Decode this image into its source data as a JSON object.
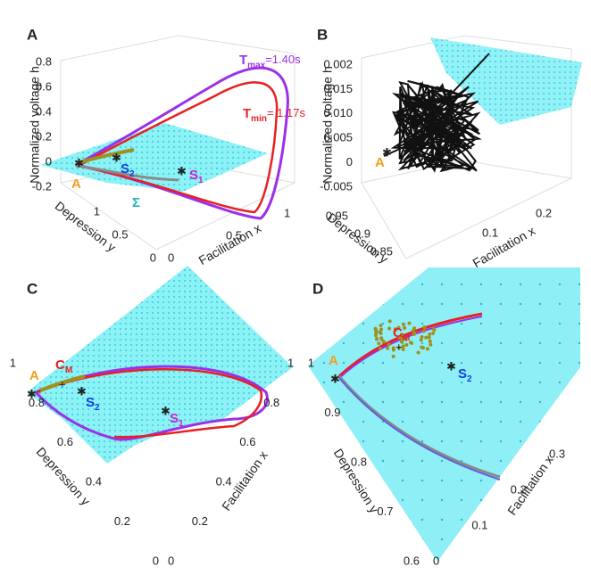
{
  "panels": [
    {
      "label": "A",
      "z_axis_title": "Normalized voltage h",
      "y_axis_title": "Depression y",
      "x_axis_title": "Facilitation x",
      "z_ticks": [
        0.8,
        0.6,
        0.4,
        0.2,
        0,
        -0.2
      ],
      "y_ticks": [
        1,
        0.5,
        0
      ],
      "x_ticks": [
        0,
        0.5,
        1
      ],
      "annotations": [
        {
          "text": "T",
          "sub": "max",
          "after": "=1.40s"
        },
        {
          "text": "T",
          "sub": "min",
          "after": "= 1.17s"
        },
        {
          "text": "S",
          "sub": "2"
        },
        {
          "text": "S",
          "sub": "1"
        },
        {
          "text": "A"
        },
        {
          "text": "Σ"
        }
      ]
    },
    {
      "label": "B",
      "z_axis_title": "Normalized voltage h",
      "y_axis_title": "Depression y",
      "x_axis_title": "Facilitation x",
      "z_ticks": [
        0.002,
        0.015,
        {
          "value": 0.01,
          "label": "0.010"
        },
        0.005,
        0,
        -0.005
      ],
      "y_ticks": [
        0.95,
        0.9,
        0.85
      ],
      "x_ticks": [
        0.1,
        0.2
      ],
      "annotations": [
        {
          "text": "A"
        }
      ]
    },
    {
      "label": "C",
      "y_axis_title": "Depression y",
      "x_axis_title": "Facilitation x",
      "y_ticks": [
        1,
        0.8,
        0.6,
        0.4,
        0.2,
        0
      ],
      "x_ticks": [
        0,
        0.2,
        0.4,
        0.6,
        0.8,
        1
      ],
      "annotations": [
        {
          "text": "A"
        },
        {
          "text": "C",
          "sub": "M"
        },
        {
          "text": "S",
          "sub": "2"
        },
        {
          "text": "S",
          "sub": "1"
        }
      ]
    },
    {
      "label": "D",
      "y_axis_title": "Depression y",
      "x_axis_title": "Facilitation x",
      "y_ticks": [
        1,
        0.9,
        0.8,
        0.7,
        0.6
      ],
      "x_ticks": [
        0,
        0.1,
        0.2,
        0.3
      ],
      "annotations": [
        {
          "text": "A"
        },
        {
          "text": "C",
          "sub": "M"
        },
        {
          "text": "S",
          "sub": "2"
        }
      ]
    }
  ]
}
